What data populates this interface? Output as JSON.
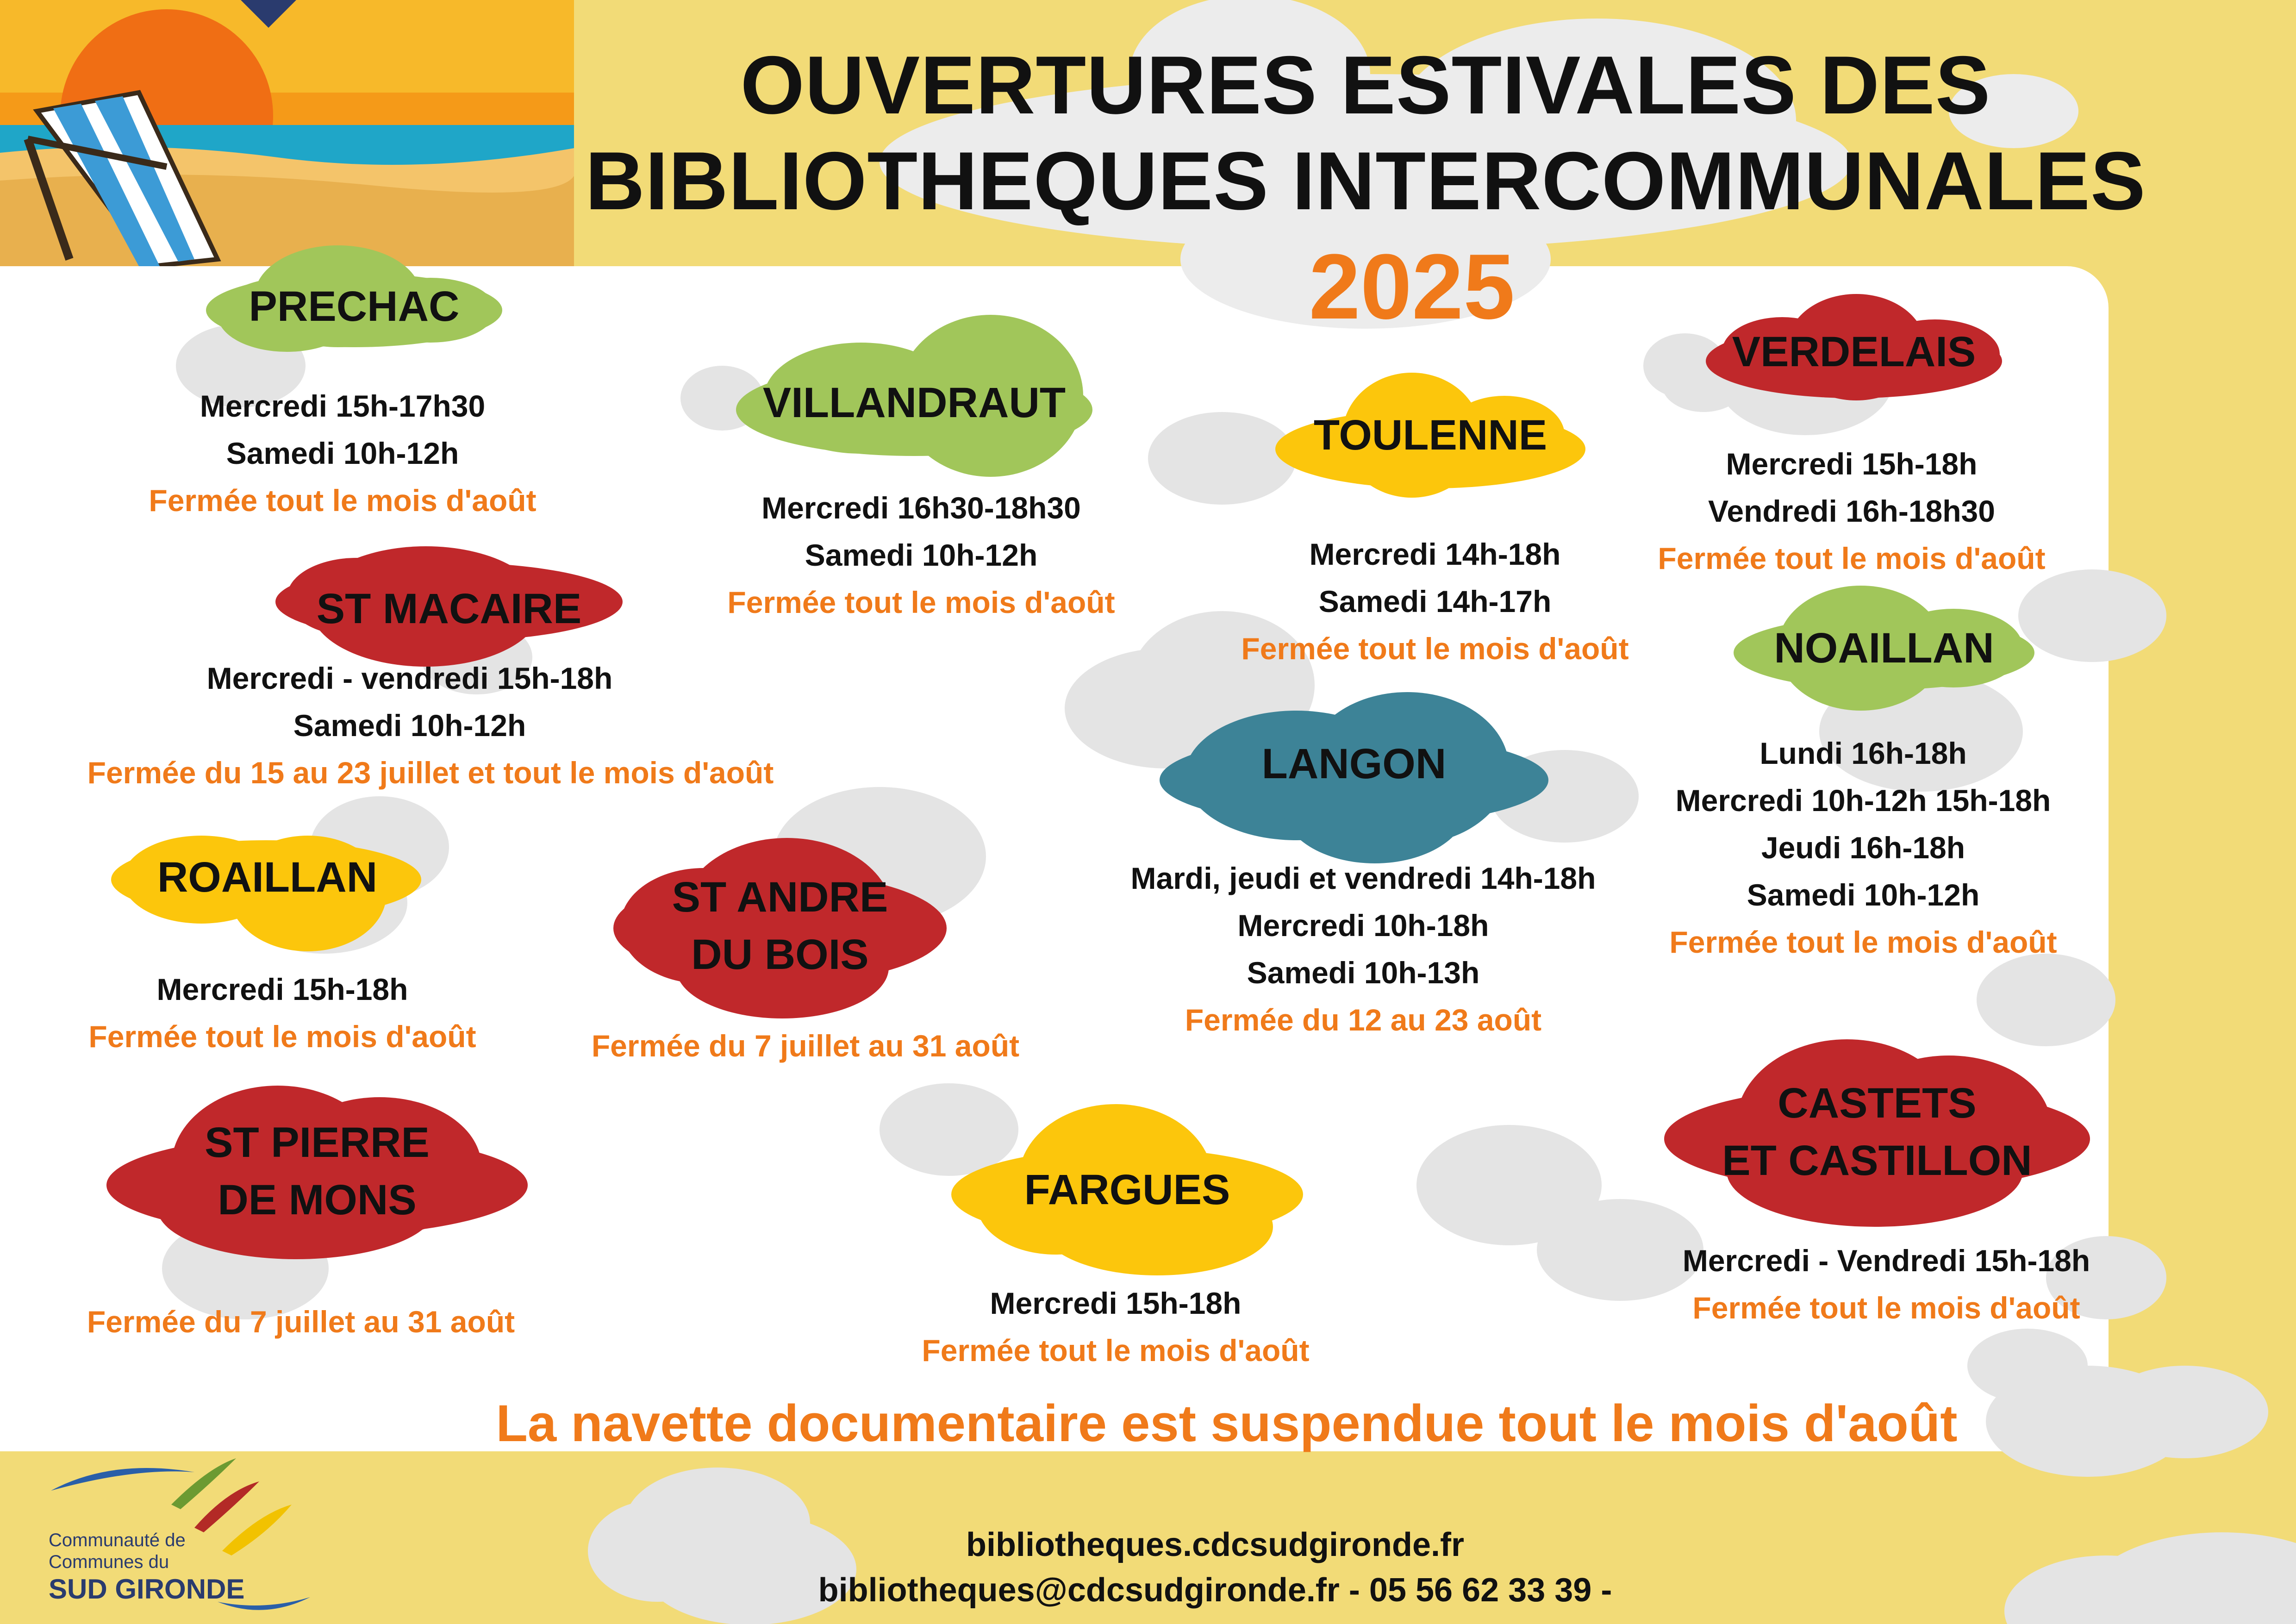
{
  "header": {
    "title_line1": "OUVERTURES ESTIVALES DES",
    "title_line2": "BIBLIOTHEQUES INTERCOMMUNALES",
    "year": "2025"
  },
  "colors": {
    "background": "#f2db77",
    "accent_orange": "#f07a1a",
    "green": "#a1c65a",
    "red": "#c0282b",
    "yellow": "#fcc60c",
    "teal": "#3d8397",
    "grey_cloud": "#e3e3e3"
  },
  "libraries": {
    "prechac": {
      "name": "PRECHAC",
      "color": "green",
      "lines": [
        "Mercredi 15h-17h30",
        "Samedi 10h-12h"
      ],
      "note": "Fermée tout le mois d'août"
    },
    "villandraut": {
      "name": "VILLANDRAUT",
      "color": "green",
      "lines": [
        "Mercredi 16h30-18h30",
        "Samedi 10h-12h"
      ],
      "note": "Fermée tout le mois d'août"
    },
    "toulenne": {
      "name": "TOULENNE",
      "color": "yellow",
      "lines": [
        "Mercredi 14h-18h",
        "Samedi  14h-17h"
      ],
      "note": "Fermée tout le mois d'août"
    },
    "verdelais": {
      "name": "VERDELAIS",
      "color": "red",
      "lines": [
        "Mercredi 15h-18h",
        "Vendredi 16h-18h30"
      ],
      "note": "Fermée tout le mois d'août"
    },
    "st_macaire": {
      "name": "ST MACAIRE",
      "color": "red",
      "lines": [
        "Mercredi - vendredi 15h-18h",
        "Samedi 10h-12h"
      ],
      "note": "Fermée du 15 au 23 juillet et tout le mois d'août"
    },
    "noaillan": {
      "name": "NOAILLAN",
      "color": "green",
      "lines": [
        "Lundi 16h-18h",
        "Mercredi 10h-12h 15h-18h",
        "Jeudi 16h-18h",
        "Samedi 10h-12h"
      ],
      "note": "Fermée tout le mois d'août"
    },
    "langon": {
      "name": "LANGON",
      "color": "teal",
      "lines": [
        "Mardi, jeudi et vendredi  14h-18h",
        "Mercredi 10h-18h",
        "Samedi 10h-13h"
      ],
      "note": "Fermée du 12 au 23 août"
    },
    "roaillan": {
      "name": "ROAILLAN",
      "color": "yellow",
      "lines": [
        "Mercredi 15h-18h"
      ],
      "note": "Fermée tout le mois d'août"
    },
    "st_andre": {
      "name": "ST ANDRE\nDU BOIS",
      "color": "red",
      "lines": [],
      "note": "Fermée du 7 juillet au 31 août"
    },
    "st_pierre": {
      "name": "ST PIERRE\nDE MONS",
      "color": "red",
      "lines": [],
      "note": "Fermée du 7 juillet  au 31  août"
    },
    "fargues": {
      "name": "FARGUES",
      "color": "yellow",
      "lines": [
        "Mercredi 15h-18h"
      ],
      "note": "Fermée tout le mois d'août"
    },
    "castets": {
      "name": "CASTETS\nET CASTILLON",
      "color": "red",
      "lines": [
        "Mercredi - Vendredi 15h-18h"
      ],
      "note": "Fermée  tout le mois d'août"
    }
  },
  "footer": {
    "navette": "La navette documentaire est suspendue tout le mois  d'août",
    "website": "bibliotheques.cdcsudgironde.fr",
    "contact": "bibliotheques@cdcsudgironde.fr - 05 56 62 33 39 -"
  },
  "logo": {
    "line1": "Communauté de",
    "line2": "Communes du",
    "line3": "SUD GIRONDE"
  },
  "icons": {
    "beach_illustration": "beach-deckchair-illustration",
    "logo_swooshes": "logo-swoosh-icon"
  }
}
